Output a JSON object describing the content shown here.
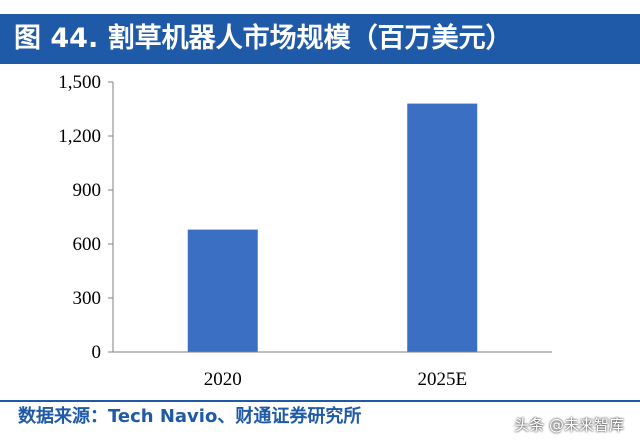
{
  "header": {
    "title": "图 44. 割草机器人市场规模（百万美元）",
    "bar_color": "#1f5aa8"
  },
  "chart_data": {
    "type": "bar",
    "title": "",
    "xlabel": "",
    "ylabel": "",
    "categories": [
      "2020",
      "2025E"
    ],
    "values": [
      680,
      1380
    ],
    "ylim": [
      0,
      1500
    ],
    "yticks": [
      0,
      300,
      600,
      900,
      1200,
      1500
    ],
    "ytick_labels": [
      "0",
      "300",
      "600",
      "900",
      "1,200",
      "1,500"
    ],
    "grid": false,
    "bar_color": "#3a6fc4"
  },
  "footer": {
    "source": "数据来源：Tech Navio、财通证券研究所",
    "watermark": "头条 @未来智库"
  }
}
